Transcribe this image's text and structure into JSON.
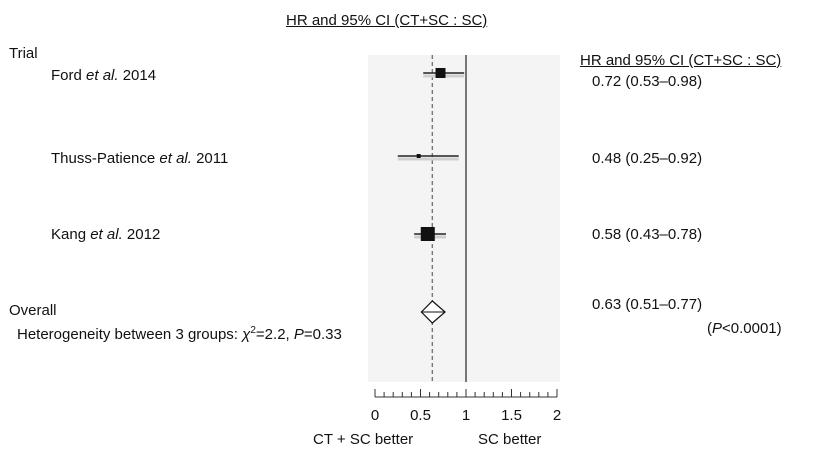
{
  "chart_data": {
    "type": "forest",
    "title": "HR and 95% CI (CT+SC : SC)",
    "column_header_left": "Trial",
    "column_header_right": "HR and 95% CI (CT+SC : SC)",
    "studies": [
      {
        "name": "Ford",
        "suffix": "et al.",
        "year": "2014",
        "hr": 0.72,
        "lo": 0.53,
        "hi": 0.98,
        "label": "0.72 (0.53–0.98)",
        "weight": "medium"
      },
      {
        "name": "Thuss-Patience",
        "suffix": "et al.",
        "year": "2011",
        "hr": 0.48,
        "lo": 0.25,
        "hi": 0.92,
        "label": "0.48 (0.25–0.92)",
        "weight": "small"
      },
      {
        "name": "Kang",
        "suffix": "et al.",
        "year": "2012",
        "hr": 0.58,
        "lo": 0.43,
        "hi": 0.78,
        "label": "0.58 (0.43–0.78)",
        "weight": "large"
      }
    ],
    "overall": {
      "name": "Overall",
      "hr": 0.63,
      "lo": 0.51,
      "hi": 0.77,
      "label": "0.63 (0.51–0.77)",
      "p_text": "(P<0.0001)"
    },
    "heterogeneity": {
      "prefix": "Heterogeneity between 3 groups: ",
      "chi": "χ",
      "sup": "2",
      "chi_value": "=2.2, ",
      "p_label": "P",
      "p_value": "=0.33"
    },
    "xaxis": {
      "min": 0,
      "max": 2,
      "ticks": [
        "0",
        "0.5",
        "1",
        "1.5",
        "2"
      ],
      "tick_values": [
        0,
        0.5,
        1,
        1.5,
        2
      ],
      "reference": 1,
      "left_label": "CT + SC better",
      "right_label": "SC better"
    }
  }
}
